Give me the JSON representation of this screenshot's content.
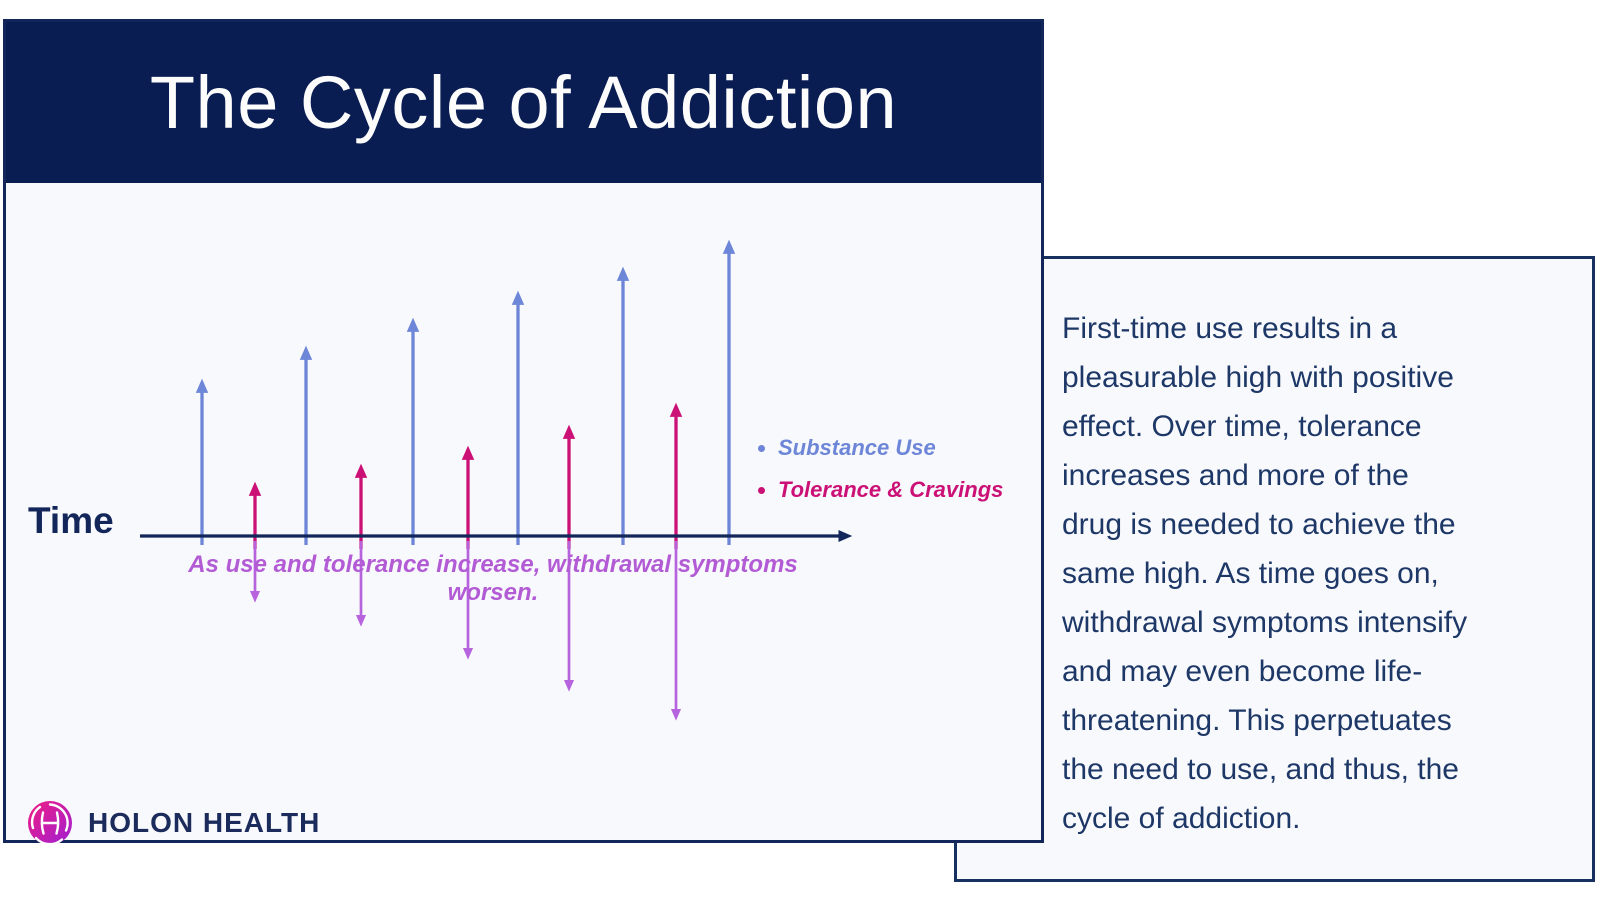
{
  "infographic": {
    "title": "The Cycle of Addiction"
  },
  "colors": {
    "header_bg": "#0a1d52",
    "panel_bg": "#f8f9fd",
    "panel_border": "#13265a",
    "axis_navy": "#13265a",
    "substance_blue": "#6d86d8",
    "tolerance_pink": "#cb1076",
    "withdrawal_purple": "#b763dd",
    "caption_purple": "#b25bd5",
    "body_text_navy": "#1d3766",
    "brand_navy": "#1b2b5c",
    "logo_gradient_start": "#f01e82",
    "logo_gradient_end": "#9f1fd4"
  },
  "chart_data": {
    "type": "arrow-timeline",
    "title": "The Cycle of Addiction",
    "caption": "As use and tolerance increase, withdrawal symptoms worsen.",
    "legend_position": "right of arrows",
    "grid": false,
    "axis": {
      "label": "Time",
      "y": 536,
      "x_start": 140,
      "x_end": 848,
      "color": "#13265a"
    },
    "series": [
      {
        "name": "Substance Use",
        "color": "#6d86d8",
        "direction": "up",
        "base": 545,
        "arrows": [
          {
            "x": 202,
            "tip": 383
          },
          {
            "x": 306,
            "tip": 350
          },
          {
            "x": 413,
            "tip": 322
          },
          {
            "x": 518,
            "tip": 295
          },
          {
            "x": 623,
            "tip": 271
          },
          {
            "x": 729,
            "tip": 244
          }
        ]
      },
      {
        "name": "Tolerance & Cravings",
        "color": "#cb1076",
        "direction": "up",
        "base": 549,
        "arrows": [
          {
            "x": 255,
            "tip": 486
          },
          {
            "x": 361,
            "tip": 468
          },
          {
            "x": 468,
            "tip": 450
          },
          {
            "x": 569,
            "tip": 429
          },
          {
            "x": 676,
            "tip": 407
          }
        ]
      },
      {
        "name": "withdrawal symptoms",
        "color": "#b763dd",
        "direction": "down",
        "base": 541,
        "arrows": [
          {
            "x": 255,
            "tip": 599
          },
          {
            "x": 361,
            "tip": 623
          },
          {
            "x": 468,
            "tip": 656
          },
          {
            "x": 569,
            "tip": 688
          },
          {
            "x": 676,
            "tip": 717
          }
        ]
      }
    ]
  },
  "legend": {
    "items": [
      {
        "label": "Substance Use",
        "color": "#6d86d8"
      },
      {
        "label": "Tolerance & Cravings",
        "color": "#cb1076"
      }
    ]
  },
  "logo": {
    "brand": "HOLON HEALTH"
  },
  "panel_text": {
    "lines": [
      "First-time use results in a",
      "pleasurable high with positive",
      "effect. Over time, tolerance",
      "increases and more of the",
      "drug is needed to achieve the",
      "same high. As time goes on,",
      "withdrawal symptoms intensify",
      "and may even become life-",
      "threatening. This perpetuates",
      "the need to use, and thus, the",
      "cycle of addiction."
    ]
  }
}
